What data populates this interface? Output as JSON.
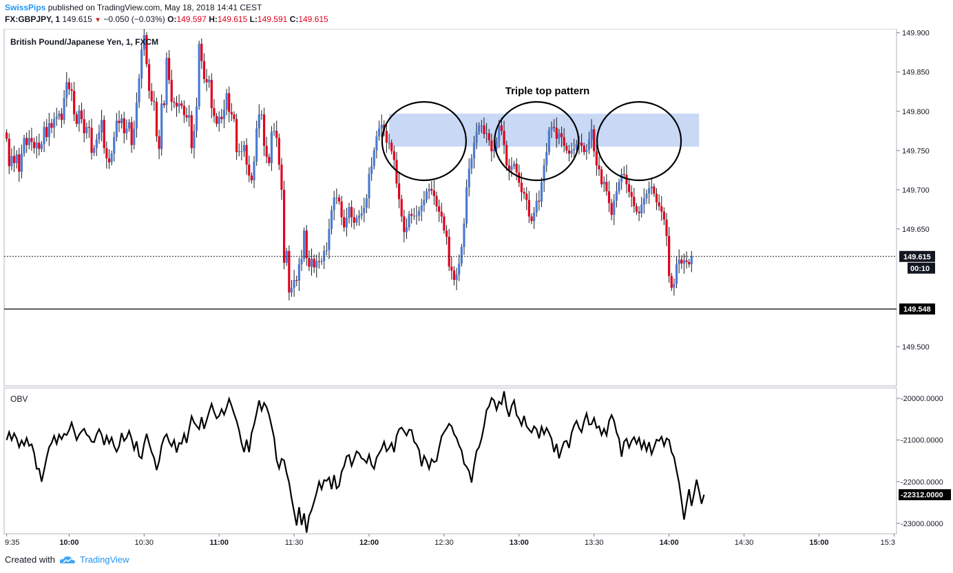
{
  "header": {
    "user": "SwissPips",
    "published": "published on TradingView.com, May 18, 2018 14:41 CEST",
    "symbol": "FX:GBPJPY, 1",
    "price": "149.615",
    "change": "−0.050 (−0.03%)",
    "open_label": "O:",
    "open": "149.597",
    "high_label": "H:",
    "high": "149.615",
    "low_label": "L:",
    "low": "149.591",
    "close_label": "C:",
    "close": "149.615"
  },
  "pane": {
    "instrument": "British Pound/Japanese Yen, 1, FXCM",
    "annotation": "Triple top pattern",
    "last_price_label": "149.615",
    "countdown_label": "00:10",
    "support_label": "149.548",
    "indicator": "OBV",
    "obv_last_label": "-22312.0000"
  },
  "footer": {
    "created_with": "Created with",
    "brand": "TradingView"
  },
  "colors": {
    "bull": "#4a7bd4",
    "bear": "#e0001b",
    "highlight": "#c8d8f5",
    "brand": "#2196f3"
  },
  "chart_data": [
    {
      "type": "candlestick",
      "title": "British Pound/Japanese Yen, 1, FXCM",
      "ylim": [
        149.45,
        149.905
      ],
      "yticks": [
        "149.900",
        "149.850",
        "149.800",
        "149.750",
        "149.700",
        "149.650",
        "149.615",
        "149.548",
        "149.500"
      ],
      "xticks": [
        "9:35",
        "10:00",
        "10:30",
        "11:00",
        "11:30",
        "12:00",
        "12:30",
        "13:00",
        "13:30",
        "14:00",
        "14:30",
        "15:00",
        "15:3"
      ],
      "x_range": [
        "09:34",
        "15:31"
      ],
      "last_price": 149.615,
      "support_line": 149.548,
      "highlight_zone": {
        "x_start": "12:08",
        "x_end": "14:12",
        "y_low": 149.755,
        "y_high": 149.797
      },
      "circled_peaks": [
        "12:22",
        "13:07",
        "13:48"
      ],
      "series": {
        "time_start": "09:35",
        "interval_minutes": 1,
        "open": [
          149.773,
          149.765,
          149.73,
          149.743,
          149.734,
          149.745,
          149.723,
          149.746,
          149.766,
          149.757,
          149.766,
          149.761,
          149.753,
          149.76,
          149.752,
          149.758,
          149.78,
          149.767,
          149.785,
          149.779,
          149.79,
          149.793,
          149.797,
          149.789,
          149.817,
          149.837,
          149.828,
          149.826,
          149.796,
          149.784,
          149.801,
          149.79,
          149.772,
          149.78,
          149.779,
          149.747,
          149.753,
          149.764,
          149.773,
          149.789,
          149.753,
          149.74,
          149.735,
          149.746,
          149.767,
          149.788,
          149.785,
          149.791,
          149.772,
          149.778,
          149.786,
          149.757,
          149.778,
          149.811,
          149.842,
          149.879,
          149.897,
          149.86,
          149.826,
          149.813,
          149.812,
          149.768,
          149.752,
          149.81,
          149.808,
          149.868,
          149.84,
          149.812,
          149.811,
          149.806,
          149.81,
          149.807,
          149.795,
          149.792,
          149.795,
          149.753,
          149.775,
          149.806,
          149.886,
          149.864,
          149.841,
          149.837,
          149.84,
          149.804,
          149.794,
          149.784,
          149.793,
          149.79,
          149.802,
          149.823,
          149.799,
          149.796,
          149.79,
          149.748,
          149.749,
          149.749,
          149.757,
          149.732,
          149.718,
          149.712,
          149.736,
          149.778,
          149.796,
          149.796,
          149.756,
          149.742,
          149.734,
          149.774,
          149.775,
          149.766,
          149.732,
          149.7,
          149.607,
          149.622,
          149.569,
          149.575,
          149.585,
          149.584,
          149.605,
          149.612,
          149.648,
          149.613,
          149.602,
          149.612,
          149.601,
          149.609,
          149.608,
          149.609,
          149.622,
          149.623,
          149.65,
          149.674,
          149.69,
          149.69,
          149.685,
          149.665,
          149.652,
          149.664,
          149.678,
          149.665,
          149.658,
          149.664,
          149.667,
          149.67,
          149.677,
          149.689,
          149.72,
          149.73,
          149.75,
          149.768,
          149.778,
          149.783,
          149.775,
          149.76,
          149.76,
          149.749,
          149.738,
          149.708,
          149.688,
          149.666,
          149.646,
          149.652,
          149.669,
          149.667,
          149.667,
          149.667,
          149.673,
          149.68,
          149.687,
          149.698,
          149.701,
          149.699,
          149.692,
          149.679,
          149.672,
          149.666,
          149.648,
          149.64,
          149.602,
          149.597,
          149.585,
          149.592,
          149.606,
          149.627,
          149.657,
          149.703,
          149.727,
          149.74,
          149.76,
          149.774,
          149.782,
          149.782,
          149.771,
          149.772,
          149.763,
          149.749,
          149.752,
          149.763,
          149.782,
          149.775,
          149.757,
          149.731,
          149.725,
          149.73,
          149.733,
          149.722,
          149.709,
          149.697,
          149.695,
          149.687,
          149.666,
          149.66,
          149.671,
          149.686,
          149.685,
          149.71,
          149.731,
          149.748,
          149.776,
          149.78,
          149.779,
          149.765,
          149.772,
          149.767,
          149.756,
          149.75,
          149.746,
          149.75,
          149.752,
          149.758,
          149.76,
          149.756,
          149.748,
          149.751,
          149.764,
          149.777,
          149.749,
          149.731,
          149.726,
          149.707,
          149.71,
          149.698,
          149.683,
          149.668,
          149.686,
          149.698,
          149.71,
          149.72,
          149.719,
          149.707,
          149.697,
          149.691,
          149.679,
          149.672,
          149.67,
          149.681,
          149.689,
          149.695,
          149.702,
          149.704,
          149.695,
          149.684,
          149.679,
          149.672,
          149.662,
          149.641,
          149.59,
          149.575,
          149.58,
          149.605,
          149.611,
          149.606,
          149.61,
          149.608,
          149.605
        ],
        "close": [
          149.765,
          149.73,
          149.743,
          149.734,
          149.745,
          149.723,
          149.746,
          149.766,
          149.757,
          149.766,
          149.761,
          149.753,
          149.76,
          149.752,
          149.758,
          149.78,
          149.767,
          149.785,
          149.779,
          149.79,
          149.793,
          149.797,
          149.789,
          149.817,
          149.837,
          149.828,
          149.826,
          149.796,
          149.784,
          149.801,
          149.79,
          149.772,
          149.78,
          149.779,
          149.747,
          149.753,
          149.764,
          149.773,
          149.789,
          149.753,
          149.74,
          149.735,
          149.746,
          149.767,
          149.788,
          149.785,
          149.791,
          149.772,
          149.778,
          149.786,
          149.757,
          149.778,
          149.811,
          149.842,
          149.879,
          149.897,
          149.86,
          149.826,
          149.813,
          149.812,
          149.768,
          149.752,
          149.81,
          149.808,
          149.868,
          149.84,
          149.812,
          149.811,
          149.806,
          149.81,
          149.807,
          149.795,
          149.792,
          149.795,
          149.753,
          149.775,
          149.806,
          149.886,
          149.864,
          149.841,
          149.837,
          149.84,
          149.804,
          149.794,
          149.784,
          149.793,
          149.79,
          149.802,
          149.823,
          149.799,
          149.796,
          149.79,
          149.748,
          149.749,
          149.749,
          149.757,
          149.732,
          149.718,
          149.712,
          149.736,
          149.778,
          149.796,
          149.796,
          149.756,
          149.742,
          149.734,
          149.774,
          149.775,
          149.766,
          149.732,
          149.7,
          149.607,
          149.622,
          149.569,
          149.575,
          149.585,
          149.584,
          149.605,
          149.612,
          149.648,
          149.613,
          149.602,
          149.612,
          149.601,
          149.609,
          149.608,
          149.609,
          149.622,
          149.623,
          149.65,
          149.674,
          149.69,
          149.69,
          149.685,
          149.665,
          149.652,
          149.664,
          149.678,
          149.665,
          149.658,
          149.664,
          149.667,
          149.67,
          149.677,
          149.689,
          149.72,
          149.73,
          149.75,
          149.768,
          149.778,
          149.783,
          149.775,
          149.76,
          149.76,
          149.749,
          149.738,
          149.708,
          149.688,
          149.666,
          149.646,
          149.652,
          149.669,
          149.667,
          149.667,
          149.667,
          149.673,
          149.68,
          149.687,
          149.698,
          149.701,
          149.699,
          149.692,
          149.679,
          149.672,
          149.666,
          149.648,
          149.64,
          149.602,
          149.597,
          149.585,
          149.592,
          149.606,
          149.627,
          149.657,
          149.703,
          149.727,
          149.74,
          149.76,
          149.774,
          149.782,
          149.782,
          149.771,
          149.772,
          149.763,
          149.749,
          149.752,
          149.763,
          149.782,
          149.775,
          149.757,
          149.731,
          149.725,
          149.73,
          149.733,
          149.722,
          149.709,
          149.697,
          149.695,
          149.687,
          149.666,
          149.66,
          149.671,
          149.686,
          149.685,
          149.71,
          149.731,
          149.748,
          149.776,
          149.78,
          149.779,
          149.765,
          149.772,
          149.767,
          149.756,
          149.75,
          149.746,
          149.75,
          149.752,
          149.758,
          149.76,
          149.756,
          149.748,
          149.751,
          149.764,
          149.777,
          149.749,
          149.731,
          149.726,
          149.707,
          149.71,
          149.698,
          149.683,
          149.668,
          149.686,
          149.698,
          149.71,
          149.72,
          149.719,
          149.707,
          149.697,
          149.691,
          149.679,
          149.672,
          149.67,
          149.681,
          149.689,
          149.695,
          149.702,
          149.704,
          149.695,
          149.684,
          149.679,
          149.672,
          149.662,
          149.641,
          149.59,
          149.575,
          149.58,
          149.605,
          149.611,
          149.606,
          149.61,
          149.608,
          149.605,
          149.615
        ]
      }
    },
    {
      "type": "line",
      "title": "OBV",
      "ylim": [
        -23250,
        -19750
      ],
      "yticks": [
        "-20000.0000",
        "-21000.0000",
        "-22000.0000",
        "-22312.0000",
        "-23000.0000"
      ],
      "series": [
        {
          "values": [
            -21000,
            -20810,
            -21000,
            -20840,
            -20960,
            -21170,
            -21010,
            -21130,
            -20950,
            -21140,
            -21100,
            -21310,
            -21690,
            -21690,
            -22000,
            -21720,
            -21420,
            -21170,
            -21070,
            -20900,
            -21090,
            -20870,
            -20980,
            -20850,
            -20880,
            -20760,
            -20580,
            -20780,
            -21000,
            -20870,
            -20790,
            -20730,
            -20870,
            -20920,
            -21040,
            -21050,
            -20860,
            -20740,
            -20870,
            -21120,
            -20900,
            -21080,
            -20940,
            -21150,
            -21280,
            -21150,
            -20830,
            -21020,
            -20940,
            -20780,
            -20970,
            -21230,
            -21030,
            -21390,
            -21440,
            -21090,
            -20850,
            -21080,
            -21290,
            -21430,
            -21720,
            -21510,
            -21130,
            -20940,
            -20860,
            -21040,
            -21150,
            -21000,
            -21300,
            -21070,
            -21090,
            -20850,
            -21070,
            -20740,
            -20430,
            -20580,
            -20660,
            -20740,
            -20450,
            -20730,
            -20530,
            -20320,
            -20130,
            -20330,
            -20480,
            -20420,
            -20260,
            -20390,
            -20220,
            -20010,
            -20180,
            -20370,
            -20540,
            -20770,
            -21080,
            -21290,
            -20990,
            -21290,
            -20830,
            -20630,
            -20350,
            -20050,
            -20290,
            -20110,
            -20210,
            -20400,
            -20670,
            -20940,
            -21480,
            -21680,
            -21450,
            -21490,
            -21790,
            -22020,
            -22400,
            -22720,
            -23050,
            -22610,
            -23040,
            -22760,
            -23220,
            -22820,
            -22680,
            -22480,
            -22260,
            -22000,
            -22180,
            -21960,
            -21980,
            -21900,
            -22180,
            -21840,
            -22160,
            -22100,
            -21760,
            -21630,
            -21390,
            -21360,
            -21620,
            -21450,
            -21270,
            -21320,
            -21440,
            -21470,
            -21550,
            -21350,
            -21600,
            -21690,
            -21420,
            -21320,
            -21210,
            -21040,
            -21270,
            -21190,
            -21070,
            -21290,
            -20900,
            -20740,
            -20700,
            -20790,
            -20890,
            -20750,
            -20760,
            -21040,
            -21110,
            -21240,
            -21630,
            -21380,
            -21500,
            -21690,
            -21460,
            -21530,
            -21500,
            -21190,
            -20910,
            -20810,
            -20720,
            -20610,
            -20670,
            -20860,
            -20950,
            -21130,
            -21250,
            -21570,
            -21640,
            -21750,
            -22020,
            -21600,
            -21260,
            -21170,
            -20960,
            -20660,
            -20280,
            -20190,
            -19990,
            -20050,
            -20280,
            -20080,
            -20140,
            -19830,
            -20220,
            -20440,
            -20180,
            -20050,
            -20400,
            -20490,
            -20650,
            -20420,
            -20670,
            -20750,
            -20820,
            -20670,
            -20740,
            -20960,
            -20680,
            -20860,
            -20710,
            -20830,
            -20970,
            -21290,
            -21090,
            -21440,
            -21220,
            -21040,
            -21020,
            -21190,
            -20830,
            -20650,
            -20540,
            -20710,
            -20810,
            -20550,
            -20360,
            -20630,
            -20620,
            -20470,
            -20710,
            -20670,
            -20880,
            -20730,
            -20890,
            -20540,
            -20400,
            -20540,
            -20820,
            -20970,
            -21400,
            -21040,
            -20970,
            -21180,
            -21020,
            -20930,
            -21090,
            -20950,
            -21210,
            -21030,
            -21260,
            -21050,
            -21340,
            -21170,
            -20990,
            -21020,
            -20920,
            -21140,
            -20960,
            -21000,
            -21290,
            -21410,
            -21730,
            -22030,
            -22460,
            -22910,
            -22530,
            -22180,
            -22580,
            -22290,
            -21950,
            -22220,
            -22530,
            -22312
          ]
        }
      ]
    }
  ]
}
